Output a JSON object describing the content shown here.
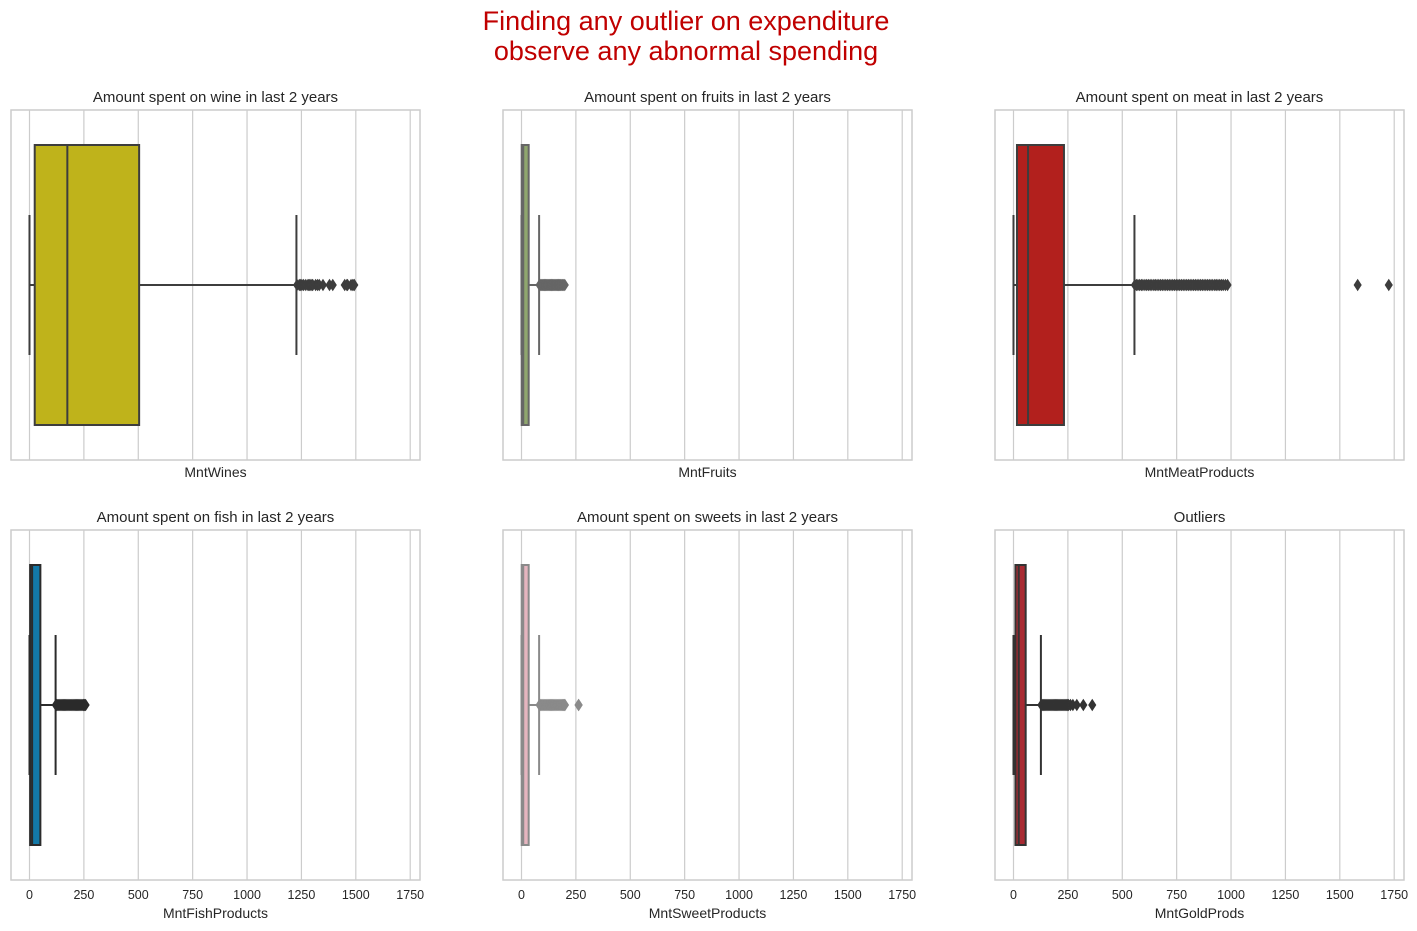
{
  "figure": {
    "suptitle_lines": [
      "Finding any outlier on expenditure",
      "observe any abnormal spending"
    ],
    "suptitle_color": "#c00000"
  },
  "chart_data": [
    {
      "type": "box",
      "title": "Amount spent on wine in last 2 years",
      "xlabel": "MntWines",
      "color": "#bfb31b",
      "edge": "#3d3d3d",
      "xlim": [
        -85,
        1795
      ],
      "xticks": [
        0,
        250,
        500,
        750,
        1000,
        1250,
        1500,
        1750
      ],
      "show_tick_labels": false,
      "min": 0,
      "q1": 24,
      "median": 174,
      "q3": 504,
      "whisker_high": 1227,
      "outliers": [
        1230,
        1240,
        1245,
        1252,
        1260,
        1270,
        1280,
        1285,
        1290,
        1298,
        1302,
        1315,
        1324,
        1332,
        1349,
        1379,
        1394,
        1449,
        1459,
        1462,
        1478,
        1486,
        1492,
        1493
      ]
    },
    {
      "type": "box",
      "title": "Amount spent on fruits in last 2 years",
      "xlabel": "MntFruits",
      "color": "#8fa66e",
      "edge": "#666666",
      "xlim": [
        -85,
        1795
      ],
      "xticks": [
        0,
        250,
        500,
        750,
        1000,
        1250,
        1500,
        1750
      ],
      "show_tick_labels": false,
      "min": 0,
      "q1": 1,
      "median": 8,
      "q3": 33,
      "whisker_high": 81,
      "outliers": [
        83,
        88,
        92,
        96,
        100,
        104,
        108,
        112,
        116,
        120,
        124,
        128,
        132,
        136,
        140,
        144,
        148,
        152,
        156,
        160,
        164,
        168,
        172,
        176,
        180,
        185,
        189,
        194,
        199
      ]
    },
    {
      "type": "box",
      "title": "Amount spent on meat in last 2 years",
      "xlabel": "MntMeatProducts",
      "color": "#b2201d",
      "edge": "#3d3d3d",
      "xlim": [
        -85,
        1795
      ],
      "xticks": [
        0,
        250,
        500,
        750,
        1000,
        1250,
        1500,
        1750
      ],
      "show_tick_labels": false,
      "min": 0,
      "q1": 16,
      "median": 67,
      "q3": 232,
      "whisker_high": 556,
      "outliers": [
        558,
        565,
        572,
        580,
        588,
        595,
        604,
        612,
        620,
        628,
        636,
        645,
        652,
        660,
        668,
        676,
        684,
        692,
        700,
        708,
        716,
        724,
        732,
        740,
        748,
        756,
        764,
        772,
        780,
        788,
        796,
        804,
        812,
        820,
        828,
        836,
        844,
        852,
        860,
        868,
        876,
        884,
        892,
        900,
        908,
        916,
        925,
        932,
        940,
        948,
        956,
        964,
        974,
        984,
        1582,
        1725
      ]
    },
    {
      "type": "box",
      "title": "Amount spent on fish in last 2 years",
      "xlabel": "MntFishProducts",
      "color": "#1379a8",
      "edge": "#2b2b2b",
      "xlim": [
        -85,
        1795
      ],
      "xticks": [
        0,
        250,
        500,
        750,
        1000,
        1250,
        1500,
        1750
      ],
      "tick_labels": [
        "0",
        "250",
        "500",
        "750",
        "1000",
        "1250",
        "1500",
        "1750"
      ],
      "show_tick_labels": true,
      "min": 0,
      "q1": 3,
      "median": 12,
      "q3": 50,
      "whisker_high": 120,
      "outliers": [
        121,
        126,
        131,
        136,
        141,
        146,
        151,
        156,
        161,
        166,
        171,
        176,
        181,
        186,
        191,
        196,
        201,
        206,
        211,
        216,
        221,
        226,
        231,
        236,
        241,
        246,
        250,
        254,
        258
      ]
    },
    {
      "type": "box",
      "title": "Amount spent on sweets in last 2 years",
      "xlabel": "MntSweetProducts",
      "color": "#e5b5bf",
      "edge": "#8a8a8a",
      "xlim": [
        -85,
        1795
      ],
      "xticks": [
        0,
        250,
        500,
        750,
        1000,
        1250,
        1500,
        1750
      ],
      "tick_labels": [
        "0",
        "250",
        "500",
        "750",
        "1000",
        "1250",
        "1500",
        "1750"
      ],
      "show_tick_labels": true,
      "min": 0,
      "q1": 1,
      "median": 8,
      "q3": 33,
      "whisker_high": 81,
      "outliers": [
        83,
        88,
        93,
        98,
        103,
        108,
        113,
        118,
        123,
        128,
        133,
        138,
        143,
        148,
        153,
        158,
        163,
        168,
        173,
        178,
        183,
        188,
        192,
        196,
        200,
        262,
        263
      ]
    },
    {
      "type": "box",
      "title": "Outliers",
      "xlabel": "MntGoldProds",
      "color": "#a82a32",
      "edge": "#333333",
      "xlim": [
        -85,
        1795
      ],
      "xticks": [
        0,
        250,
        500,
        750,
        1000,
        1250,
        1500,
        1750
      ],
      "tick_labels": [
        "0",
        "250",
        "500",
        "750",
        "1000",
        "1250",
        "1500",
        "1750"
      ],
      "show_tick_labels": true,
      "min": 0,
      "q1": 9,
      "median": 24,
      "q3": 56,
      "whisker_high": 126,
      "outliers": [
        128,
        133,
        138,
        143,
        148,
        153,
        158,
        163,
        168,
        173,
        178,
        183,
        188,
        193,
        198,
        203,
        208,
        213,
        218,
        223,
        228,
        233,
        238,
        243,
        248,
        253,
        262,
        273,
        291,
        321,
        362
      ]
    }
  ]
}
